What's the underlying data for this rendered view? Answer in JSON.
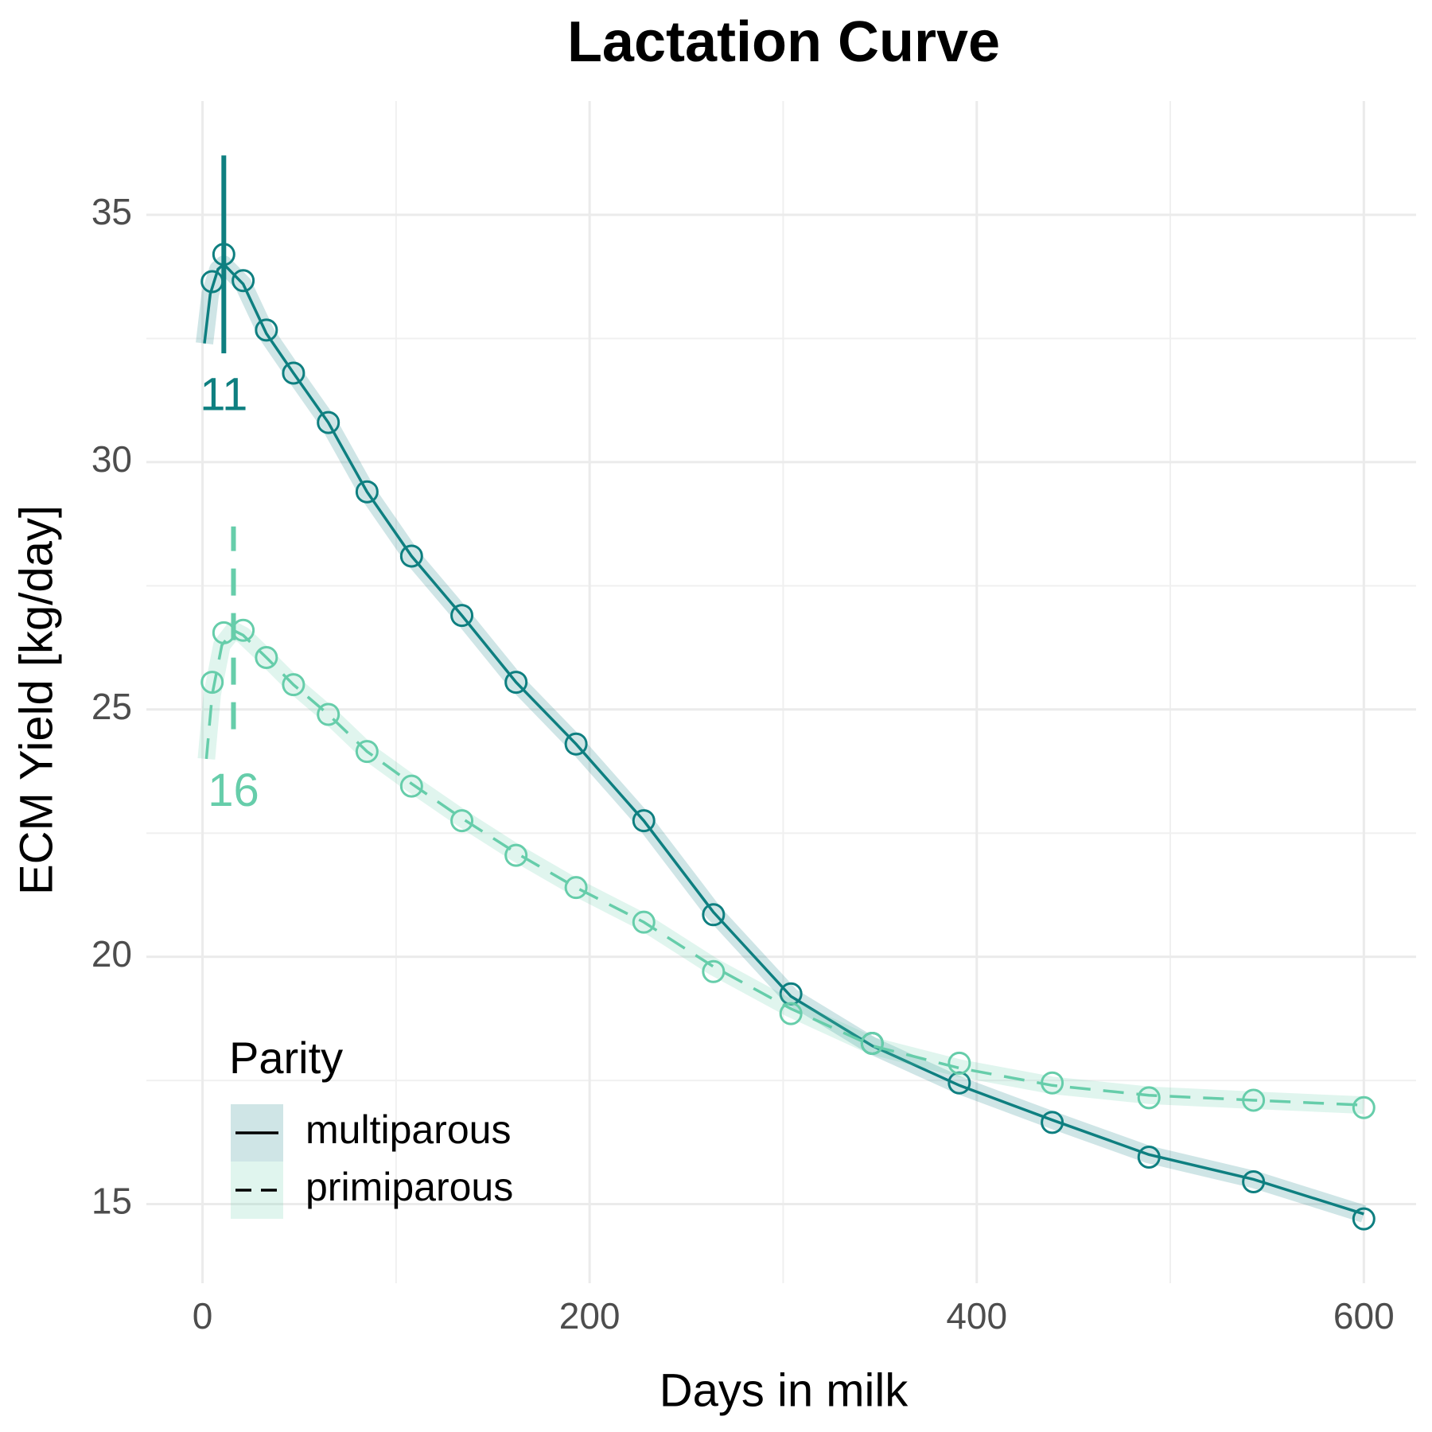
{
  "chart_data": {
    "type": "line",
    "title": "Lactation Curve",
    "x_label": "Days in milk",
    "y_label": "ECM Yield [kg/day]",
    "xlim": [
      -29,
      627
    ],
    "ylim": [
      13.4,
      37.3
    ],
    "xticks": [
      0,
      200,
      400,
      600
    ],
    "yticks": [
      15,
      20,
      25,
      30,
      35
    ],
    "minor_xticks": [
      100,
      300,
      500
    ],
    "minor_yticks": [
      17.5,
      22.5,
      27.5,
      32.5
    ],
    "grid": true,
    "legend_position": "bottom-left",
    "legend_title": "Parity",
    "series": [
      {
        "name": "multiparous",
        "color": "#0e7f80",
        "linetype": "solid",
        "x": [
          5,
          11,
          21,
          33,
          47,
          65,
          85,
          108,
          134,
          162,
          193,
          228,
          264,
          304,
          346,
          391,
          439,
          489,
          543,
          600
        ],
        "values": [
          33.65,
          34.2,
          33.67,
          32.67,
          31.8,
          30.8,
          29.4,
          28.1,
          26.9,
          25.55,
          24.3,
          22.75,
          20.85,
          19.25,
          18.25,
          17.45,
          16.65,
          15.95,
          15.45,
          14.7
        ],
        "curve_x": [
          1,
          4,
          8,
          11,
          21,
          33,
          47,
          65,
          85,
          108,
          134,
          162,
          193,
          228,
          264,
          304,
          346,
          391,
          439,
          489,
          543,
          600
        ],
        "curve_values": [
          32.4,
          33.4,
          33.9,
          34.0,
          33.6,
          32.6,
          31.8,
          30.8,
          29.4,
          28.1,
          26.9,
          25.55,
          24.3,
          22.75,
          20.9,
          19.2,
          18.2,
          17.4,
          16.7,
          16.0,
          15.5,
          14.8
        ],
        "peak": {
          "x": 11,
          "y0": 32.2,
          "y1": 36.2,
          "label_y": 31.3
        }
      },
      {
        "name": "primiparous",
        "color": "#66cdaa",
        "linetype": "dashed",
        "x": [
          5,
          11,
          21,
          33,
          47,
          65,
          85,
          108,
          134,
          162,
          193,
          228,
          264,
          304,
          346,
          391,
          439,
          489,
          543,
          600
        ],
        "values": [
          25.55,
          26.55,
          26.6,
          26.05,
          25.5,
          24.9,
          24.15,
          23.45,
          22.75,
          22.05,
          21.4,
          20.7,
          19.7,
          18.85,
          18.25,
          17.85,
          17.45,
          17.15,
          17.1,
          16.95
        ],
        "curve_x": [
          2,
          5,
          10,
          16,
          21,
          33,
          47,
          65,
          85,
          108,
          134,
          162,
          193,
          228,
          264,
          304,
          346,
          391,
          439,
          489,
          543,
          600
        ],
        "curve_values": [
          24.0,
          25.3,
          26.3,
          26.6,
          26.5,
          26.05,
          25.5,
          24.9,
          24.15,
          23.5,
          22.8,
          22.1,
          21.4,
          20.7,
          19.8,
          18.95,
          18.2,
          17.75,
          17.4,
          17.2,
          17.1,
          17.0
        ],
        "peak": {
          "x": 16,
          "y0": 24.6,
          "y1": 28.7,
          "label_y": 23.3
        }
      }
    ]
  }
}
